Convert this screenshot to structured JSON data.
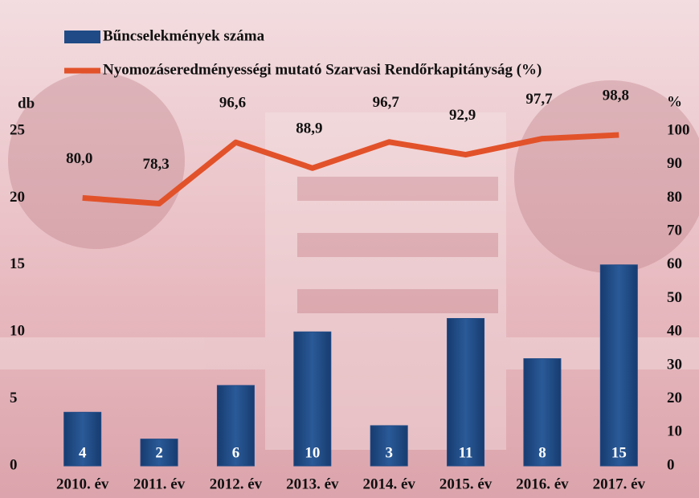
{
  "chart_data": {
    "type": "bar",
    "categories": [
      "2010. év",
      "2011. év",
      "2012. év",
      "2013. év",
      "2014. év",
      "2015. év",
      "2016. év",
      "2017. év"
    ],
    "series": [
      {
        "name": "Bűncselekmények száma",
        "color": "#1f4a86",
        "values": [
          4,
          2,
          6,
          10,
          3,
          11,
          8,
          15
        ]
      },
      {
        "name": "Nyomozáseredményességi mutató Szarvasi Rendőrkapitányság (%)",
        "color": "#e2522a",
        "type": "line",
        "axis": "y2",
        "values": [
          80.0,
          78.3,
          96.6,
          88.9,
          96.7,
          92.9,
          97.7,
          98.8
        ],
        "value_labels": [
          "80,0",
          "78,3",
          "96,6",
          "88,9",
          "96,7",
          "92,9",
          "97,7",
          "98,8"
        ]
      }
    ],
    "y_label": "db",
    "y2_label": "%",
    "ylim": [
      0,
      25
    ],
    "yticks": [
      0,
      5,
      10,
      15,
      20,
      25
    ],
    "y2lim": [
      0,
      100
    ],
    "y2ticks": [
      0,
      10,
      20,
      30,
      40,
      50,
      60,
      70,
      80,
      90,
      100
    ]
  }
}
